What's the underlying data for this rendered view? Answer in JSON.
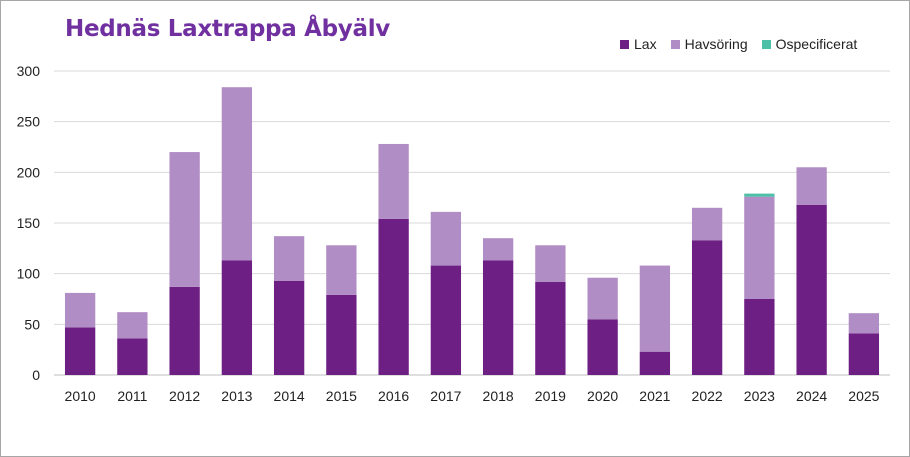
{
  "chart_data": {
    "type": "bar",
    "stacked": true,
    "title": "Hednäs Laxtrappa Åbyälv",
    "categories": [
      "2010",
      "2011",
      "2012",
      "2013",
      "2014",
      "2015",
      "2016",
      "2017",
      "2018",
      "2019",
      "2020",
      "2021",
      "2022",
      "2023",
      "2024",
      "2025"
    ],
    "series": [
      {
        "name": "Lax",
        "color": "#6e1f84",
        "values": [
          47,
          36,
          87,
          113,
          93,
          79,
          154,
          108,
          113,
          92,
          55,
          23,
          133,
          75,
          168,
          41
        ]
      },
      {
        "name": "Havsöring",
        "color": "#b08dc4",
        "values": [
          34,
          26,
          133,
          171,
          44,
          49,
          74,
          53,
          22,
          36,
          41,
          85,
          32,
          101,
          37,
          20
        ]
      },
      {
        "name": "Ospecificerat",
        "color": "#4fc0a8",
        "values": [
          0,
          0,
          0,
          0,
          0,
          0,
          0,
          0,
          0,
          0,
          0,
          0,
          0,
          3,
          0,
          0
        ]
      }
    ],
    "ylim": [
      0,
      300
    ],
    "yticks": [
      0,
      50,
      100,
      150,
      200,
      250,
      300
    ],
    "grid": true,
    "legend_position": "top-right"
  }
}
